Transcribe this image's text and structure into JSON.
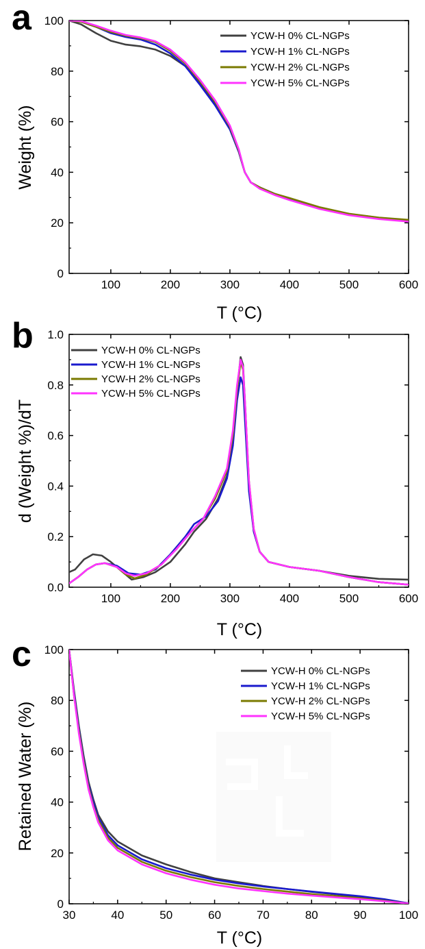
{
  "figure": {
    "panels": [
      {
        "letter": "a"
      },
      {
        "letter": "b"
      },
      {
        "letter": "c"
      }
    ]
  },
  "chart_data": [
    {
      "type": "line",
      "panel": "a",
      "title": "",
      "xlabel": "T (°C)",
      "ylabel": "Weight (%)",
      "xlim": [
        30,
        600
      ],
      "ylim": [
        0,
        100
      ],
      "xticks": [
        100,
        200,
        300,
        400,
        500,
        600
      ],
      "yticks": [
        0,
        20,
        40,
        60,
        80,
        100
      ],
      "legend_position": "top-right",
      "grid": false,
      "series": [
        {
          "name": "YCW-H 0% CL-NGPs",
          "color": "#404040",
          "x": [
            30,
            50,
            75,
            100,
            125,
            150,
            175,
            200,
            225,
            250,
            275,
            300,
            315,
            325,
            335,
            350,
            375,
            400,
            450,
            500,
            550,
            600
          ],
          "y": [
            100,
            98.5,
            95,
            92,
            90.5,
            89.8,
            88.5,
            86,
            82,
            75,
            67,
            57,
            48,
            40,
            36,
            34,
            31.5,
            29.5,
            26,
            23.5,
            22,
            21
          ]
        },
        {
          "name": "YCW-H 1% CL-NGPs",
          "color": "#1a1acd",
          "x": [
            30,
            50,
            75,
            100,
            125,
            150,
            175,
            200,
            225,
            250,
            275,
            300,
            315,
            325,
            335,
            350,
            375,
            400,
            450,
            500,
            550,
            600
          ],
          "y": [
            100,
            99.5,
            97.5,
            95,
            93.5,
            92.5,
            90.5,
            87,
            82,
            74.5,
            66.5,
            57,
            48,
            40,
            36,
            34,
            31.5,
            29.5,
            26,
            23.5,
            22,
            21
          ]
        },
        {
          "name": "YCW-H 2% CL-NGPs",
          "color": "#7a7a00",
          "x": [
            30,
            50,
            75,
            100,
            125,
            150,
            175,
            200,
            225,
            250,
            275,
            300,
            315,
            325,
            335,
            350,
            375,
            400,
            450,
            500,
            550,
            600
          ],
          "y": [
            100,
            99.5,
            97.5,
            95.5,
            94,
            93,
            91.5,
            88,
            83,
            76,
            68,
            58,
            48.5,
            40,
            36,
            34,
            31.5,
            29.8,
            26.2,
            23.6,
            22.1,
            21.2
          ]
        },
        {
          "name": "YCW-H 5% CL-NGPs",
          "color": "#ff33ff",
          "x": [
            30,
            50,
            75,
            100,
            125,
            150,
            175,
            200,
            225,
            250,
            275,
            300,
            315,
            325,
            335,
            350,
            375,
            400,
            450,
            500,
            550,
            600
          ],
          "y": [
            100,
            99.8,
            98,
            96,
            94.3,
            93.3,
            91.8,
            88.5,
            83.5,
            76.5,
            68.5,
            58.5,
            49,
            40,
            36,
            33.5,
            31,
            29,
            25.5,
            23,
            21.5,
            20.5
          ]
        }
      ]
    },
    {
      "type": "line",
      "panel": "b",
      "title": "",
      "xlabel": "T (°C)",
      "ylabel": "d (Weight %)/dT",
      "xlim": [
        30,
        600
      ],
      "ylim": [
        0,
        1.0
      ],
      "xticks": [
        100,
        200,
        300,
        400,
        500,
        600
      ],
      "yticks": [
        0.0,
        0.2,
        0.4,
        0.6,
        0.8,
        1.0
      ],
      "ytick_labels": [
        "0.0",
        "0.2",
        "0.4",
        "0.6",
        "0.8",
        "1.0"
      ],
      "legend_position": "top-left",
      "grid": false,
      "series": [
        {
          "name": "YCW-H 0% CL-NGPs",
          "color": "#404040",
          "x": [
            30,
            40,
            55,
            70,
            85,
            100,
            115,
            135,
            155,
            175,
            200,
            225,
            240,
            260,
            280,
            295,
            305,
            312,
            318,
            322,
            326,
            332,
            340,
            350,
            365,
            400,
            450,
            500,
            550,
            600
          ],
          "y": [
            0.06,
            0.07,
            0.11,
            0.13,
            0.125,
            0.1,
            0.07,
            0.03,
            0.04,
            0.06,
            0.1,
            0.17,
            0.22,
            0.27,
            0.35,
            0.44,
            0.58,
            0.78,
            0.91,
            0.88,
            0.7,
            0.4,
            0.22,
            0.14,
            0.1,
            0.08,
            0.065,
            0.045,
            0.033,
            0.03
          ]
        },
        {
          "name": "YCW-H 1% CL-NGPs",
          "color": "#1a1acd",
          "x": [
            30,
            45,
            60,
            75,
            90,
            110,
            130,
            150,
            175,
            200,
            225,
            240,
            260,
            280,
            295,
            305,
            312,
            318,
            322,
            326,
            332,
            340,
            350,
            365,
            400,
            450,
            500,
            550,
            600
          ],
          "y": [
            0.015,
            0.04,
            0.07,
            0.09,
            0.095,
            0.085,
            0.055,
            0.05,
            0.07,
            0.13,
            0.2,
            0.25,
            0.28,
            0.34,
            0.43,
            0.56,
            0.74,
            0.83,
            0.8,
            0.63,
            0.38,
            0.22,
            0.14,
            0.1,
            0.08,
            0.065,
            0.04,
            0.02,
            0.01
          ]
        },
        {
          "name": "YCW-H 2% CL-NGPs",
          "color": "#7a7a00",
          "x": [
            30,
            45,
            60,
            75,
            90,
            110,
            125,
            140,
            160,
            185,
            210,
            235,
            255,
            275,
            295,
            305,
            312,
            318,
            322,
            326,
            332,
            340,
            350,
            365,
            400,
            450,
            500,
            550,
            600
          ],
          "y": [
            0.015,
            0.04,
            0.07,
            0.09,
            0.095,
            0.08,
            0.05,
            0.035,
            0.05,
            0.09,
            0.15,
            0.22,
            0.27,
            0.35,
            0.46,
            0.6,
            0.78,
            0.89,
            0.86,
            0.69,
            0.42,
            0.23,
            0.14,
            0.1,
            0.08,
            0.065,
            0.04,
            0.02,
            0.01
          ]
        },
        {
          "name": "YCW-H 5% CL-NGPs",
          "color": "#ff33ff",
          "x": [
            30,
            45,
            60,
            75,
            90,
            110,
            125,
            140,
            160,
            185,
            210,
            235,
            255,
            275,
            295,
            305,
            312,
            318,
            322,
            326,
            332,
            340,
            350,
            365,
            400,
            450,
            500,
            550,
            600
          ],
          "y": [
            0.015,
            0.04,
            0.07,
            0.09,
            0.095,
            0.08,
            0.055,
            0.045,
            0.055,
            0.09,
            0.15,
            0.22,
            0.27,
            0.36,
            0.47,
            0.62,
            0.8,
            0.9,
            0.87,
            0.7,
            0.42,
            0.23,
            0.14,
            0.1,
            0.08,
            0.065,
            0.04,
            0.02,
            0.01
          ]
        }
      ]
    },
    {
      "type": "line",
      "panel": "c",
      "title": "",
      "xlabel": "T (°C)",
      "ylabel": "Retained Water (%)",
      "xlim": [
        30,
        100
      ],
      "ylim": [
        0,
        100
      ],
      "xticks": [
        30,
        40,
        50,
        60,
        70,
        80,
        90,
        100
      ],
      "yticks": [
        0,
        20,
        40,
        60,
        80,
        100
      ],
      "legend_position": "top-right",
      "grid": false,
      "series": [
        {
          "name": "YCW-H 0% CL-NGPs",
          "color": "#404040",
          "x": [
            30,
            31,
            32,
            33,
            34,
            35,
            36,
            38,
            40,
            45,
            50,
            55,
            60,
            65,
            70,
            75,
            80,
            85,
            90,
            95,
            100
          ],
          "y": [
            100,
            84,
            70,
            58,
            48,
            41,
            35,
            28.5,
            24.5,
            19,
            15.5,
            12.5,
            10,
            8.5,
            7,
            5.8,
            4.7,
            3.7,
            2.7,
            1.6,
            0.2
          ]
        },
        {
          "name": "YCW-H 1% CL-NGPs",
          "color": "#1a1acd",
          "x": [
            30,
            31,
            32,
            33,
            34,
            35,
            36,
            38,
            40,
            45,
            50,
            55,
            60,
            65,
            70,
            75,
            80,
            85,
            90,
            95,
            100
          ],
          "y": [
            100,
            83,
            69,
            57,
            47,
            40,
            34,
            27,
            23,
            17.5,
            14,
            11.5,
            9.5,
            8,
            6.8,
            5.8,
            4.8,
            3.9,
            3,
            1.8,
            0.2
          ]
        },
        {
          "name": "YCW-H 2% CL-NGPs",
          "color": "#7a7a00",
          "x": [
            30,
            31,
            32,
            33,
            34,
            35,
            36,
            38,
            40,
            45,
            50,
            55,
            60,
            65,
            70,
            75,
            80,
            85,
            90,
            95,
            100
          ],
          "y": [
            100,
            82,
            68,
            56,
            46,
            38.5,
            33,
            26,
            22,
            16.5,
            13,
            10.5,
            8.5,
            7,
            5.8,
            4.8,
            3.8,
            3,
            2.2,
            1.2,
            0.1
          ]
        },
        {
          "name": "YCW-H 5% CL-NGPs",
          "color": "#ff33ff",
          "x": [
            30,
            31,
            32,
            33,
            34,
            35,
            36,
            38,
            40,
            45,
            50,
            55,
            60,
            65,
            70,
            75,
            80,
            85,
            90,
            95,
            100
          ],
          "y": [
            100,
            82,
            67,
            55,
            45,
            38,
            32,
            25,
            21,
            15.5,
            12,
            9.5,
            7.5,
            6,
            5,
            4,
            3.2,
            2.5,
            1.8,
            1,
            0.1
          ]
        }
      ]
    }
  ]
}
